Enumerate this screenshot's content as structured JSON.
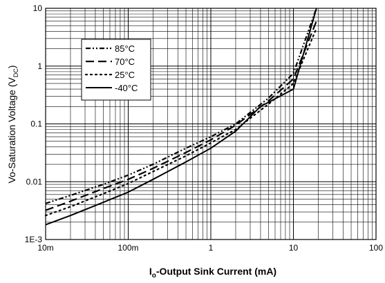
{
  "chart_data": {
    "type": "line",
    "x_scale": "log",
    "y_scale": "log",
    "xlim": [
      0.01,
      100
    ],
    "ylim": [
      0.001,
      10
    ],
    "grid": true,
    "legend_position": "top-left",
    "xlabel": "-Output Sink Current (mA)",
    "xlabel_prefix": "I",
    "xlabel_subscript": "o",
    "ylabel": "Vo-Saturation Voltage (V",
    "ylabel_subscript": "DC",
    "ylabel_suffix": ")",
    "x_ticks": [
      {
        "value": 0.01,
        "label": "10m"
      },
      {
        "value": 0.1,
        "label": "100m"
      },
      {
        "value": 1,
        "label": "1"
      },
      {
        "value": 10,
        "label": "10"
      },
      {
        "value": 100,
        "label": "100"
      }
    ],
    "y_ticks": [
      {
        "value": 0.001,
        "label": "1E-3"
      },
      {
        "value": 0.01,
        "label": "0.01"
      },
      {
        "value": 0.1,
        "label": "0.1"
      },
      {
        "value": 1,
        "label": "1"
      },
      {
        "value": 10,
        "label": "10"
      }
    ],
    "series": [
      {
        "name": "85°C",
        "label_value": "85",
        "label_unit": "°C",
        "style": "dash-dot-dot",
        "x": [
          0.01,
          0.02,
          0.05,
          0.1,
          0.2,
          0.5,
          1,
          2,
          5,
          10,
          19
        ],
        "y": [
          0.0042,
          0.0058,
          0.009,
          0.013,
          0.02,
          0.038,
          0.06,
          0.1,
          0.28,
          0.75,
          10
        ]
      },
      {
        "name": "70°C",
        "label_value": "70",
        "label_unit": "°C",
        "style": "long-dash",
        "x": [
          0.01,
          0.02,
          0.05,
          0.1,
          0.2,
          0.5,
          1,
          2,
          5,
          10,
          19
        ],
        "y": [
          0.0032,
          0.0046,
          0.0076,
          0.011,
          0.017,
          0.032,
          0.053,
          0.095,
          0.25,
          0.6,
          6
        ]
      },
      {
        "name": "25°C",
        "label_value": "25",
        "label_unit": "°C",
        "style": "dotted",
        "x": [
          0.01,
          0.02,
          0.05,
          0.1,
          0.2,
          0.5,
          1,
          2,
          5,
          10,
          19
        ],
        "y": [
          0.0026,
          0.0037,
          0.0062,
          0.0093,
          0.015,
          0.028,
          0.047,
          0.08,
          0.22,
          0.5,
          4.5
        ]
      },
      {
        "name": "-40°C",
        "label_value": "-40",
        "label_unit": "°C",
        "style": "solid",
        "x": [
          0.01,
          0.02,
          0.05,
          0.1,
          0.2,
          0.5,
          1,
          2,
          4,
          10,
          19
        ],
        "y": [
          0.0018,
          0.0026,
          0.0044,
          0.0066,
          0.011,
          0.022,
          0.038,
          0.075,
          0.2,
          0.4,
          10
        ]
      }
    ]
  }
}
